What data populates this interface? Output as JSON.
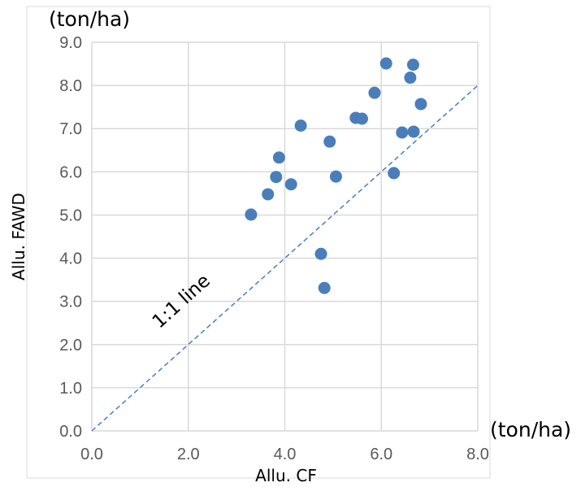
{
  "chart_data": {
    "type": "scatter",
    "xlabel": "Allu. CF",
    "ylabel": "Allu. FAWD",
    "x_unit": "(ton/ha)",
    "y_unit": "(ton/ha)",
    "xlim": [
      0,
      8
    ],
    "ylim": [
      0,
      9
    ],
    "x_ticks": [
      "0.0",
      "2.0",
      "4.0",
      "6.0",
      "8.0"
    ],
    "y_ticks": [
      "0.0",
      "1.0",
      "2.0",
      "3.0",
      "4.0",
      "5.0",
      "6.0",
      "7.0",
      "8.0",
      "9.0"
    ],
    "grid": true,
    "legend": "none",
    "point_color": "#4a7ebb",
    "reference_line": {
      "label": "1:1 line",
      "slope": 1,
      "intercept": 0,
      "style": "dashed",
      "color": "#4a7ebb"
    },
    "points": [
      {
        "x": 3.3,
        "y": 5.01
      },
      {
        "x": 3.65,
        "y": 5.48
      },
      {
        "x": 3.82,
        "y": 5.88
      },
      {
        "x": 3.88,
        "y": 6.33
      },
      {
        "x": 4.13,
        "y": 5.71
      },
      {
        "x": 4.33,
        "y": 7.07
      },
      {
        "x": 4.75,
        "y": 4.1
      },
      {
        "x": 4.82,
        "y": 3.31
      },
      {
        "x": 4.93,
        "y": 6.7
      },
      {
        "x": 5.06,
        "y": 5.89
      },
      {
        "x": 5.47,
        "y": 7.25
      },
      {
        "x": 5.6,
        "y": 7.23
      },
      {
        "x": 5.86,
        "y": 7.83
      },
      {
        "x": 6.1,
        "y": 8.51
      },
      {
        "x": 6.26,
        "y": 5.97
      },
      {
        "x": 6.43,
        "y": 6.91
      },
      {
        "x": 6.6,
        "y": 8.18
      },
      {
        "x": 6.66,
        "y": 8.48
      },
      {
        "x": 6.67,
        "y": 6.93
      },
      {
        "x": 6.82,
        "y": 7.57
      }
    ]
  }
}
